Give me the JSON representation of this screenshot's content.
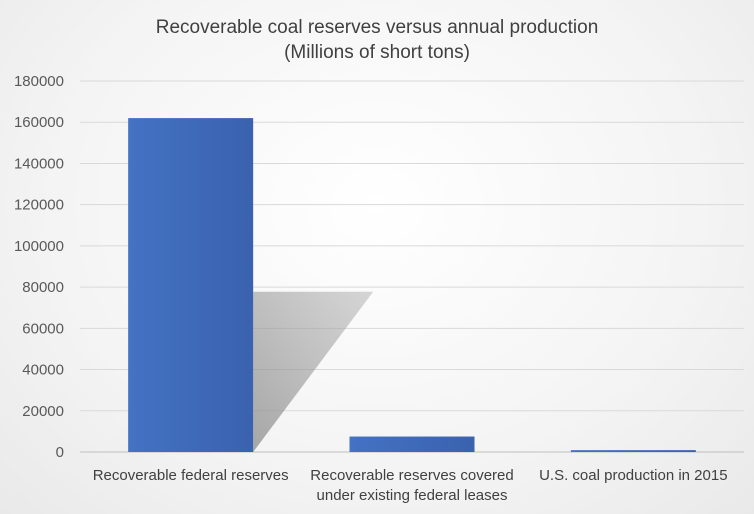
{
  "chart_data": {
    "type": "bar",
    "title": [
      "Recoverable coal reserves versus annual production",
      "(Millions of short tons)"
    ],
    "categories": [
      [
        "Recoverable federal reserves"
      ],
      [
        "Recoverable reserves covered",
        "under existing federal leases"
      ],
      [
        "U.S. coal production in 2015"
      ]
    ],
    "series": [
      {
        "values": [
          162000,
          7500,
          900
        ]
      }
    ],
    "ylim": [
      0,
      180000
    ],
    "yticks": [
      0,
      20000,
      40000,
      60000,
      80000,
      100000,
      120000,
      140000,
      160000,
      180000
    ],
    "grid": true,
    "legend": "none",
    "bar_color": "#4472C4",
    "bar_color_dark": "#3A62AE"
  }
}
